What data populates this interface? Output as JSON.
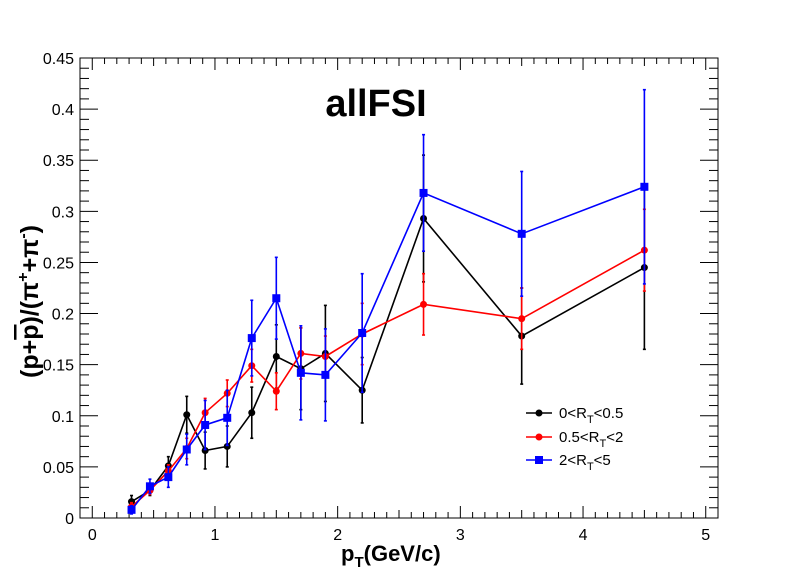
{
  "chart_data": {
    "type": "line",
    "title": "allFSI",
    "xlabel": {
      "main": "p",
      "sub": "T",
      "rest": "(GeV/c)"
    },
    "ylabel": {
      "open": "(p+",
      "pbar": "p",
      "mid": ")/(π",
      "sup1": "+",
      "plus": "+π",
      "sup2": "-",
      "close": ")"
    },
    "xlim": [
      -0.1,
      5.1
    ],
    "ylim": [
      0,
      0.45
    ],
    "xticks": [
      0,
      1,
      2,
      3,
      4,
      5
    ],
    "xtick_labels": [
      "0",
      "1",
      "2",
      "3",
      "4",
      "5"
    ],
    "yticks": [
      0,
      0.05,
      0.1,
      0.15,
      0.2,
      0.25,
      0.3,
      0.35,
      0.4,
      0.45
    ],
    "ytick_labels": [
      "0",
      "0.05",
      "0.1",
      "0.15",
      "0.2",
      "0.25",
      "0.3",
      "0.35",
      "0.4",
      "0.45"
    ],
    "legend_position": "lower-right",
    "series": [
      {
        "name": {
          "a": "0<R",
          "sub": "T",
          "b": "<0.5"
        },
        "color": "#000000",
        "marker": "circle",
        "x": [
          0.32,
          0.47,
          0.62,
          0.77,
          0.92,
          1.1,
          1.3,
          1.5,
          1.7,
          1.9,
          2.2,
          2.7,
          3.5,
          4.5
        ],
        "y": [
          0.016,
          0.027,
          0.051,
          0.101,
          0.066,
          0.07,
          0.103,
          0.158,
          0.146,
          0.161,
          0.125,
          0.293,
          0.178,
          0.245
        ],
        "err": [
          0.006,
          0.005,
          0.009,
          0.018,
          0.018,
          0.02,
          0.025,
          0.031,
          0.04,
          0.047,
          0.032,
          0.062,
          0.047,
          0.08
        ]
      },
      {
        "name": {
          "a": "0.5<R",
          "sub": "T",
          "b": "<2"
        },
        "color": "#ff0000",
        "marker": "circle",
        "x": [
          0.32,
          0.47,
          0.62,
          0.77,
          0.92,
          1.1,
          1.3,
          1.5,
          1.7,
          1.9,
          2.2,
          2.7,
          3.5,
          4.5
        ],
        "y": [
          0.011,
          0.027,
          0.046,
          0.068,
          0.103,
          0.122,
          0.149,
          0.124,
          0.161,
          0.158,
          0.18,
          0.209,
          0.195,
          0.262
        ],
        "err": [
          0.004,
          0.004,
          0.006,
          0.01,
          0.014,
          0.013,
          0.016,
          0.018,
          0.025,
          0.02,
          0.03,
          0.03,
          0.03,
          0.04
        ]
      },
      {
        "name": {
          "a": "2<R",
          "sub": "T",
          "b": "<5"
        },
        "color": "#0000ff",
        "marker": "square",
        "x": [
          0.32,
          0.47,
          0.62,
          0.77,
          0.92,
          1.1,
          1.3,
          1.5,
          1.7,
          1.9,
          2.2,
          2.7,
          3.5,
          4.5
        ],
        "y": [
          0.008,
          0.031,
          0.04,
          0.067,
          0.091,
          0.098,
          0.176,
          0.215,
          0.142,
          0.14,
          0.181,
          0.318,
          0.278,
          0.324
        ],
        "err": [
          0.004,
          0.007,
          0.01,
          0.015,
          0.024,
          0.027,
          0.037,
          0.04,
          0.046,
          0.045,
          0.058,
          0.057,
          0.061,
          0.095
        ]
      }
    ]
  }
}
